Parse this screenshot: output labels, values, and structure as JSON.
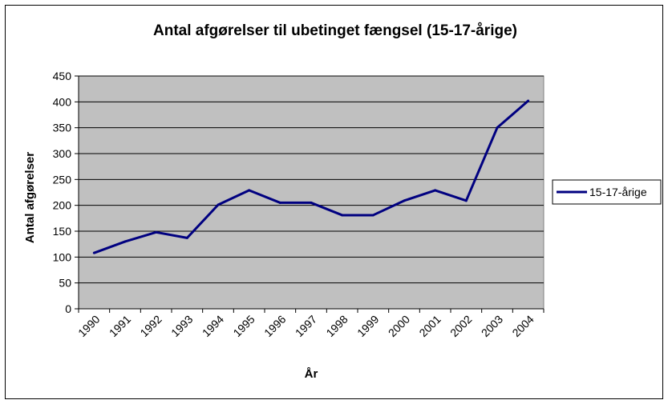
{
  "chart_data": {
    "type": "line",
    "title": "Antal afgørelser til ubetinget fængsel (15-17-årige)",
    "xlabel": "År",
    "ylabel": "Antal afgørelser",
    "categories": [
      "1990",
      "1991",
      "1992",
      "1993",
      "1994",
      "1995",
      "1996",
      "1997",
      "1998",
      "1999",
      "2000",
      "2001",
      "2002",
      "2003",
      "2004"
    ],
    "series": [
      {
        "name": "15-17-årige",
        "values": [
          108,
          130,
          148,
          137,
          201,
          229,
          205,
          205,
          181,
          181,
          209,
          229,
          209,
          350,
          402
        ]
      }
    ],
    "ylim": [
      0,
      450
    ],
    "yticks": [
      0,
      50,
      100,
      150,
      200,
      250,
      300,
      350,
      400,
      450
    ],
    "grid": true,
    "legend": "right",
    "colors": {
      "line": "#000080",
      "plot_bg": "#c0c0c0",
      "grid": "#000000"
    }
  }
}
